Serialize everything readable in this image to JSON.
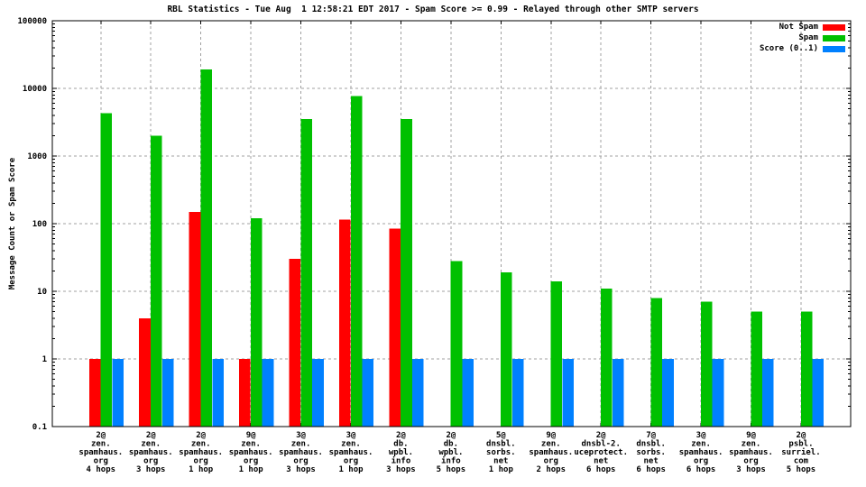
{
  "title": "RBL Statistics - Tue Aug  1 12:58:21 EDT 2017 - Spam Score >= 0.99 - Relayed through other SMTP servers",
  "chart_data": {
    "type": "bar",
    "title": "RBL Statistics - Tue Aug  1 12:58:21 EDT 2017 - Spam Score >= 0.99 - Relayed through other SMTP servers",
    "xlabel": "",
    "ylabel": "Message Count or Spam Score",
    "y_scale": "log",
    "ylim": [
      0.1,
      100000
    ],
    "y_ticks": [
      {
        "label": "100000",
        "value": 100000
      },
      {
        "label": "10000",
        "value": 10000
      },
      {
        "label": "1000",
        "value": 1000
      },
      {
        "label": "100",
        "value": 100
      },
      {
        "label": "10",
        "value": 10
      },
      {
        "label": "1",
        "value": 1
      },
      {
        "label": "0.1",
        "value": 0.1
      }
    ],
    "grid": true,
    "legend_position": "top-right",
    "categories": [
      [
        "2@",
        "zen.",
        "spamhaus.",
        "org",
        "4 hops"
      ],
      [
        "2@",
        "zen.",
        "spamhaus.",
        "org",
        "3 hops"
      ],
      [
        "2@",
        "zen.",
        "spamhaus.",
        "org",
        "1 hop"
      ],
      [
        "9@",
        "zen.",
        "spamhaus.",
        "org",
        "1 hop"
      ],
      [
        "3@",
        "zen.",
        "spamhaus.",
        "org",
        "3 hops"
      ],
      [
        "3@",
        "zen.",
        "spamhaus.",
        "org",
        "1 hop"
      ],
      [
        "2@",
        "db.",
        "wpbl.",
        "info",
        "3 hops"
      ],
      [
        "2@",
        "db.",
        "wpbl.",
        "info",
        "5 hops"
      ],
      [
        "5@",
        "dnsbl.",
        "sorbs.",
        "net",
        "1 hop"
      ],
      [
        "9@",
        "zen.",
        "spamhaus.",
        "org",
        "2 hops"
      ],
      [
        "2@",
        "dnsbl-2.",
        "uceprotect.",
        "net",
        "6 hops"
      ],
      [
        "7@",
        "dnsbl.",
        "sorbs.",
        "net",
        "6 hops"
      ],
      [
        "3@",
        "zen.",
        "spamhaus.",
        "org",
        "6 hops"
      ],
      [
        "9@",
        "zen.",
        "spamhaus.",
        "org",
        "3 hops"
      ],
      [
        "2@",
        "psbl.",
        "surriel.",
        "com",
        "5 hops"
      ]
    ],
    "series": [
      {
        "name": "Not Spam",
        "color": "#ff0000",
        "values": [
          1,
          4,
          150,
          1,
          30,
          115,
          85,
          null,
          null,
          null,
          null,
          null,
          null,
          null,
          null
        ]
      },
      {
        "name": "Spam",
        "color": "#00c000",
        "values": [
          4300,
          2000,
          19000,
          120,
          3500,
          7700,
          3500,
          28,
          19,
          14,
          11,
          8,
          7,
          5,
          5
        ]
      },
      {
        "name": "Score (0..1)",
        "color": "#0080ff",
        "values": [
          1,
          1,
          1,
          1,
          1,
          1,
          1,
          1,
          1,
          1,
          1,
          1,
          1,
          1,
          1
        ]
      }
    ],
    "colors": {
      "not_spam": "#ff0000",
      "spam": "#00c000",
      "score": "#0080ff",
      "grid": "#a0a0a0",
      "border": "#000000",
      "background": "#ffffff"
    }
  }
}
